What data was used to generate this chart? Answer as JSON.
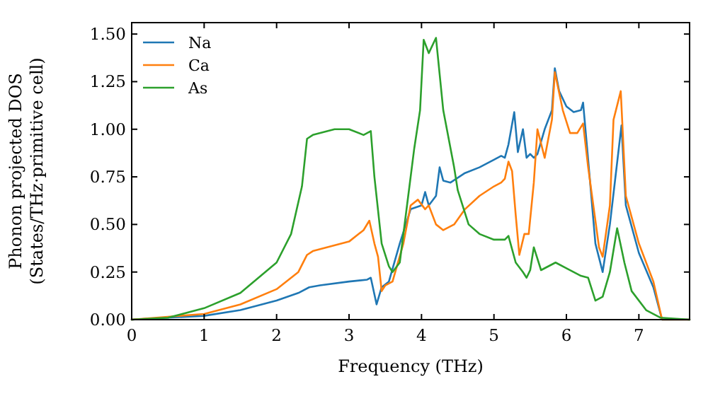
{
  "chart_data": {
    "type": "line",
    "xlabel": "Frequency (THz)",
    "ylabel": "Phonon projected DOS\n(States/THz·primitive cell)",
    "xlim": [
      0,
      7.7
    ],
    "ylim": [
      0,
      1.56
    ],
    "xticks": [
      0,
      1,
      2,
      3,
      4,
      5,
      6,
      7
    ],
    "yticks": [
      {
        "value": 0,
        "label": "0.00"
      },
      {
        "value": 0.25,
        "label": "0.25"
      },
      {
        "value": 0.5,
        "label": "0.50"
      },
      {
        "value": 0.75,
        "label": "0.75"
      },
      {
        "value": 1,
        "label": "1.00"
      },
      {
        "value": 1.25,
        "label": "1.25"
      },
      {
        "value": 1.5,
        "label": "1.50"
      }
    ],
    "grid": false,
    "legend": "top left",
    "marker": "none",
    "line_style": "solid",
    "series": [
      {
        "name": "Na",
        "color": "#1f77b4",
        "x": [
          0,
          1,
          1.5,
          2,
          2.3,
          2.45,
          2.6,
          3,
          3.25,
          3.3,
          3.38,
          3.45,
          3.55,
          3.7,
          3.85,
          4,
          4.05,
          4.1,
          4.2,
          4.25,
          4.3,
          4.4,
          4.6,
          4.8,
          5,
          5.1,
          5.15,
          5.2,
          5.28,
          5.33,
          5.4,
          5.45,
          5.5,
          5.55,
          5.6,
          5.7,
          5.8,
          5.84,
          5.9,
          6,
          6.1,
          6.2,
          6.23,
          6.3,
          6.4,
          6.5,
          6.6,
          6.76,
          6.82,
          7,
          7.2,
          7.32,
          7.7
        ],
        "values": [
          0,
          0.02,
          0.05,
          0.1,
          0.14,
          0.17,
          0.18,
          0.2,
          0.21,
          0.22,
          0.08,
          0.17,
          0.2,
          0.4,
          0.58,
          0.6,
          0.67,
          0.6,
          0.65,
          0.8,
          0.73,
          0.72,
          0.77,
          0.8,
          0.84,
          0.86,
          0.85,
          0.92,
          1.09,
          0.88,
          1,
          0.85,
          0.87,
          0.85,
          0.87,
          1,
          1.1,
          1.32,
          1.2,
          1.12,
          1.09,
          1.1,
          1.14,
          0.84,
          0.4,
          0.25,
          0.5,
          1.02,
          0.6,
          0.35,
          0.17,
          0,
          0
        ]
      },
      {
        "name": "Ca",
        "color": "#ff7f0e",
        "x": [
          0,
          1,
          1.5,
          2,
          2.3,
          2.42,
          2.5,
          3,
          3.2,
          3.28,
          3.35,
          3.4,
          3.45,
          3.5,
          3.6,
          3.75,
          3.85,
          3.95,
          4.05,
          4.1,
          4.2,
          4.3,
          4.45,
          4.6,
          4.8,
          5,
          5.1,
          5.15,
          5.2,
          5.25,
          5.3,
          5.35,
          5.42,
          5.48,
          5.55,
          5.6,
          5.7,
          5.8,
          5.84,
          5.95,
          6.05,
          6.15,
          6.23,
          6.3,
          6.45,
          6.5,
          6.6,
          6.65,
          6.75,
          6.82,
          7,
          7.2,
          7.32,
          7.7
        ],
        "values": [
          0,
          0.03,
          0.08,
          0.16,
          0.25,
          0.34,
          0.36,
          0.41,
          0.47,
          0.52,
          0.4,
          0.33,
          0.15,
          0.18,
          0.2,
          0.4,
          0.6,
          0.63,
          0.58,
          0.6,
          0.5,
          0.47,
          0.5,
          0.58,
          0.65,
          0.7,
          0.72,
          0.74,
          0.83,
          0.78,
          0.55,
          0.34,
          0.45,
          0.45,
          0.72,
          1,
          0.85,
          1.05,
          1.3,
          1.1,
          0.98,
          0.98,
          1.03,
          0.8,
          0.38,
          0.33,
          0.6,
          1.05,
          1.2,
          0.65,
          0.4,
          0.2,
          0,
          0
        ]
      },
      {
        "name": "As",
        "color": "#2ca02c",
        "x": [
          0,
          0.5,
          1,
          1.5,
          2,
          2.2,
          2.35,
          2.42,
          2.5,
          2.8,
          3,
          3.2,
          3.3,
          3.35,
          3.45,
          3.55,
          3.6,
          3.7,
          3.8,
          3.9,
          3.98,
          4.03,
          4.1,
          4.2,
          4.3,
          4.45,
          4.5,
          4.65,
          4.8,
          5,
          5.15,
          5.2,
          5.3,
          5.4,
          5.45,
          5.5,
          5.55,
          5.65,
          5.85,
          6,
          6.2,
          6.3,
          6.4,
          6.5,
          6.6,
          6.7,
          6.8,
          6.9,
          7.1,
          7.3,
          7.7
        ],
        "values": [
          0,
          0.01,
          0.06,
          0.14,
          0.3,
          0.45,
          0.7,
          0.95,
          0.97,
          1,
          1,
          0.97,
          0.99,
          0.75,
          0.4,
          0.28,
          0.25,
          0.3,
          0.6,
          0.9,
          1.1,
          1.47,
          1.4,
          1.48,
          1.1,
          0.8,
          0.68,
          0.5,
          0.45,
          0.42,
          0.42,
          0.44,
          0.3,
          0.25,
          0.22,
          0.26,
          0.38,
          0.26,
          0.3,
          0.27,
          0.23,
          0.22,
          0.1,
          0.12,
          0.25,
          0.48,
          0.3,
          0.15,
          0.05,
          0.01,
          0
        ]
      }
    ]
  }
}
